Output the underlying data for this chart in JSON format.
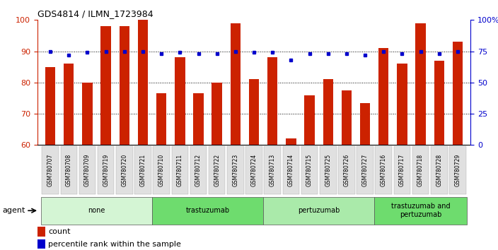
{
  "title": "GDS4814 / ILMN_1723984",
  "samples": [
    "GSM780707",
    "GSM780708",
    "GSM780709",
    "GSM780719",
    "GSM780720",
    "GSM780721",
    "GSM780710",
    "GSM780711",
    "GSM780712",
    "GSM780722",
    "GSM780723",
    "GSM780724",
    "GSM780713",
    "GSM780714",
    "GSM780715",
    "GSM780725",
    "GSM780726",
    "GSM780727",
    "GSM780716",
    "GSM780717",
    "GSM780718",
    "GSM780728",
    "GSM780729"
  ],
  "counts": [
    85,
    86,
    80,
    98,
    98,
    100,
    76.5,
    88,
    76.5,
    80,
    99,
    81,
    88,
    62,
    76,
    81,
    77.5,
    73.5,
    91,
    86,
    99,
    87,
    93
  ],
  "percentile_ranks": [
    75,
    72,
    74,
    75,
    75,
    75,
    73,
    74,
    73,
    73,
    75,
    74,
    74,
    68,
    73,
    73,
    73,
    72,
    75,
    73,
    75,
    73,
    75
  ],
  "groups": [
    {
      "label": "none",
      "start": 0,
      "end": 6,
      "color": "#d4f5d4"
    },
    {
      "label": "trastuzumab",
      "start": 6,
      "end": 12,
      "color": "#6edc6e"
    },
    {
      "label": "pertuzumab",
      "start": 12,
      "end": 18,
      "color": "#aaeaaa"
    },
    {
      "label": "trastuzumab and\npertuzumab",
      "start": 18,
      "end": 23,
      "color": "#6edc6e"
    }
  ],
  "ylim": [
    60,
    100
  ],
  "yticks_left": [
    60,
    70,
    80,
    90,
    100
  ],
  "yticks_right": [
    0,
    25,
    50,
    75,
    100
  ],
  "ytick_right_labels": [
    "0",
    "25",
    "50",
    "75",
    "100%"
  ],
  "bar_color": "#cc2200",
  "dot_color": "#0000cc",
  "agent_label": "agent",
  "legend_count": "count",
  "legend_percentile": "percentile rank within the sample",
  "gridlines": [
    70,
    80,
    90
  ],
  "right_ylim": [
    0,
    100
  ]
}
